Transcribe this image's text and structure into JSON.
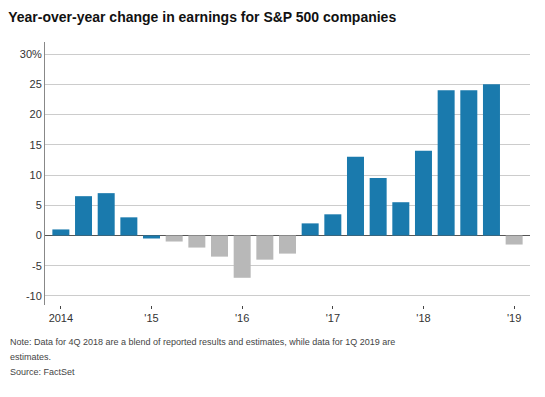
{
  "chart_data": {
    "type": "bar",
    "title": "Year-over-year change in earnings for S&P 500 companies",
    "categories": [
      "2014",
      null,
      null,
      null,
      "'15",
      null,
      null,
      null,
      "'16",
      null,
      null,
      null,
      "'17",
      null,
      null,
      null,
      "'18",
      null,
      null,
      null,
      "'19"
    ],
    "values": [
      1.0,
      6.5,
      7.0,
      3.0,
      -0.5,
      -1.0,
      -2.0,
      -3.5,
      -7.0,
      -4.0,
      -3.0,
      2.0,
      3.5,
      13.0,
      9.5,
      5.5,
      14.0,
      24.0,
      24.0,
      25.0,
      -1.5
    ],
    "colors": [
      "#1a7aad",
      "#1a7aad",
      "#1a7aad",
      "#1a7aad",
      "#1a7aad",
      "#b8b8b8",
      "#b8b8b8",
      "#b8b8b8",
      "#b8b8b8",
      "#b8b8b8",
      "#b8b8b8",
      "#1a7aad",
      "#1a7aad",
      "#1a7aad",
      "#1a7aad",
      "#1a7aad",
      "#1a7aad",
      "#1a7aad",
      "#1a7aad",
      "#1a7aad",
      "#b8b8b8"
    ],
    "ylim": [
      -11.5,
      32
    ],
    "yticks": [
      -10,
      -5,
      0,
      5,
      10,
      15,
      20,
      25,
      {
        "value": 30,
        "label": "30%"
      }
    ],
    "grid": true,
    "annotations": [
      "Note: Data for 4Q 2018 are a blend of reported results and estimates, while data for 1Q 2019 are",
      "estimates.",
      "Source: FactSet"
    ]
  }
}
